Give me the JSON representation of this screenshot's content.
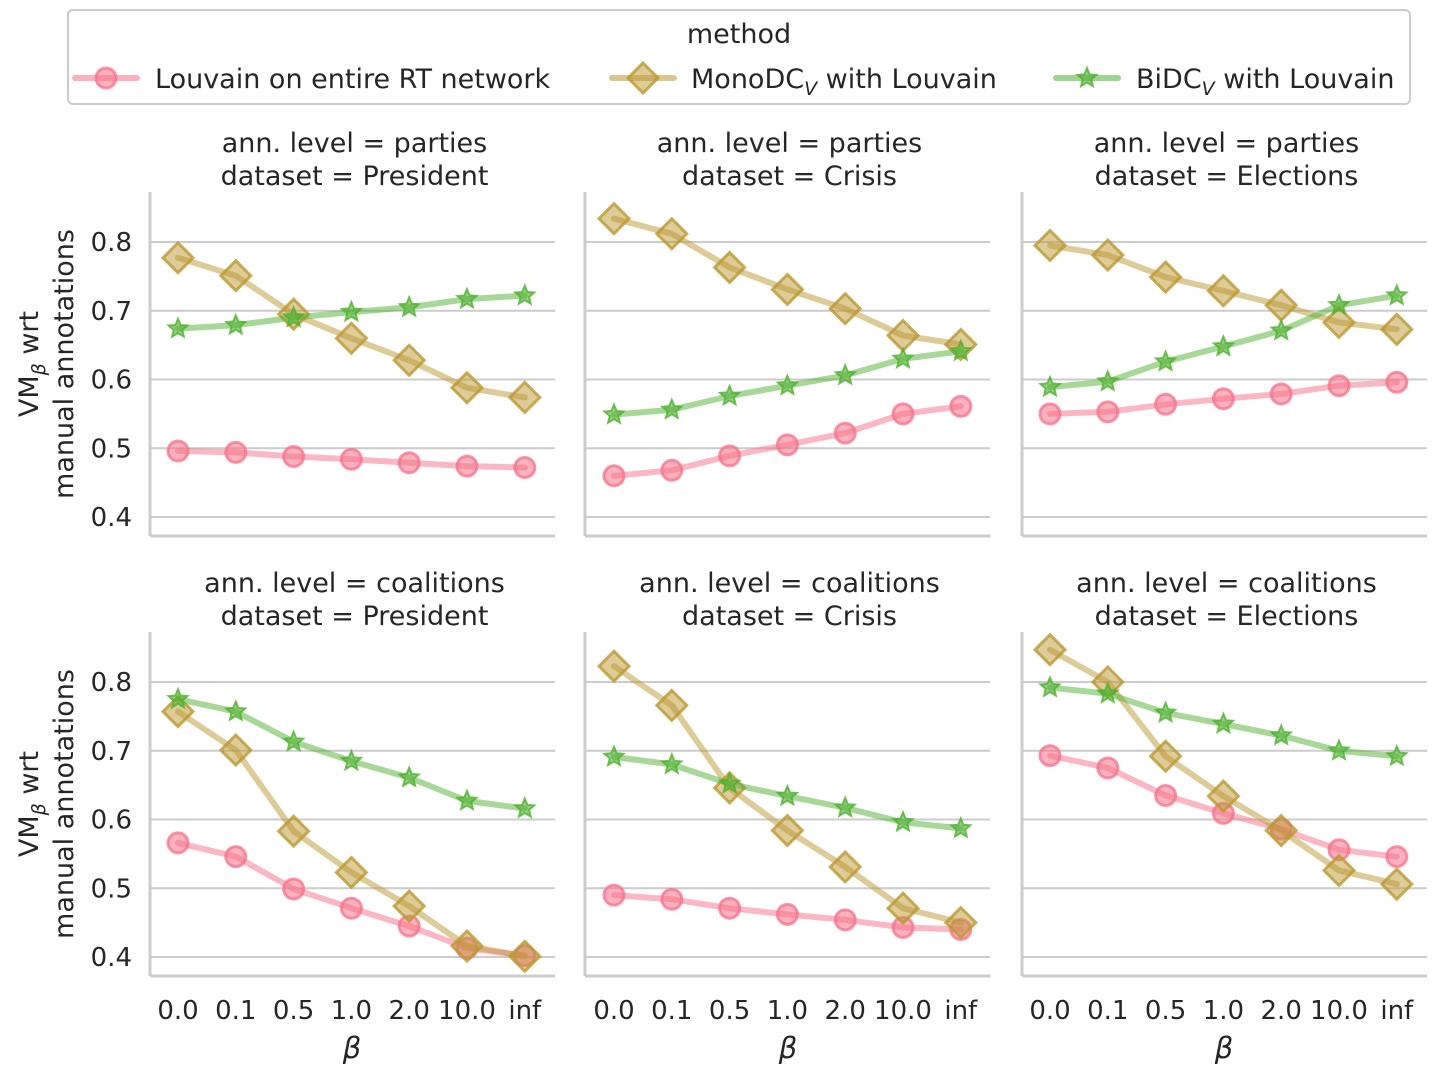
{
  "legend": {
    "title": "method",
    "entries": [
      {
        "label": "Louvain on entire RT network",
        "main": "Louvain on entire RT network",
        "sub": "",
        "tail": "",
        "series": 0
      },
      {
        "label": "MonoDC_V with Louvain",
        "main": "MonoDC",
        "sub": "V",
        "tail": " with Louvain",
        "series": 1
      },
      {
        "label": "BiDC_V with Louvain",
        "main": "BiDC",
        "sub": "V",
        "tail": " with Louvain",
        "series": 2
      }
    ]
  },
  "colors": {
    "louvain": "#f77189",
    "mono": "#bb9832",
    "bidc": "#50b131",
    "grid": "#cccccc",
    "text": "#262626"
  },
  "y_axis_label": {
    "main": "VM",
    "sub": "β",
    "tail": " wrt",
    "line2": "manual annotations"
  },
  "x_axis_label": "β",
  "chart_data": [
    {
      "type": "line",
      "title_line1": "ann. level = parties",
      "title_line2": "dataset = President",
      "categories": [
        "0.0",
        "0.1",
        "0.5",
        "1.0",
        "2.0",
        "10.0",
        "inf"
      ],
      "yticks": [
        "0.4",
        "0.5",
        "0.6",
        "0.7",
        "0.8"
      ],
      "ylim": [
        0.37,
        0.87
      ],
      "series": [
        {
          "name": "Louvain on entire RT network",
          "values": [
            0.496,
            0.494,
            0.488,
            0.484,
            0.479,
            0.474,
            0.472
          ]
        },
        {
          "name": "MonoDC_V with Louvain",
          "values": [
            0.777,
            0.751,
            0.695,
            0.66,
            0.628,
            0.588,
            0.574
          ]
        },
        {
          "name": "BiDC_V with Louvain",
          "values": [
            0.674,
            0.679,
            0.69,
            0.698,
            0.705,
            0.717,
            0.722
          ]
        }
      ]
    },
    {
      "type": "line",
      "title_line1": "ann. level = parties",
      "title_line2": "dataset = Crisis",
      "categories": [
        "0.0",
        "0.1",
        "0.5",
        "1.0",
        "2.0",
        "10.0",
        "inf"
      ],
      "yticks": [
        "0.4",
        "0.5",
        "0.6",
        "0.7",
        "0.8"
      ],
      "ylim": [
        0.37,
        0.87
      ],
      "series": [
        {
          "name": "Louvain on entire RT network",
          "values": [
            0.46,
            0.468,
            0.489,
            0.505,
            0.522,
            0.55,
            0.561
          ]
        },
        {
          "name": "MonoDC_V with Louvain",
          "values": [
            0.834,
            0.812,
            0.763,
            0.731,
            0.703,
            0.664,
            0.651
          ]
        },
        {
          "name": "BiDC_V with Louvain",
          "values": [
            0.549,
            0.556,
            0.576,
            0.591,
            0.606,
            0.63,
            0.641
          ]
        }
      ]
    },
    {
      "type": "line",
      "title_line1": "ann. level = parties",
      "title_line2": "dataset = Elections",
      "categories": [
        "0.0",
        "0.1",
        "0.5",
        "1.0",
        "2.0",
        "10.0",
        "inf"
      ],
      "yticks": [
        "0.4",
        "0.5",
        "0.6",
        "0.7",
        "0.8"
      ],
      "ylim": [
        0.37,
        0.87
      ],
      "series": [
        {
          "name": "Louvain on entire RT network",
          "values": [
            0.55,
            0.553,
            0.564,
            0.572,
            0.579,
            0.591,
            0.596
          ]
        },
        {
          "name": "MonoDC_V with Louvain",
          "values": [
            0.795,
            0.781,
            0.749,
            0.729,
            0.708,
            0.683,
            0.673
          ]
        },
        {
          "name": "BiDC_V with Louvain",
          "values": [
            0.589,
            0.597,
            0.626,
            0.648,
            0.671,
            0.708,
            0.722
          ]
        }
      ]
    },
    {
      "type": "line",
      "title_line1": "ann. level = coalitions",
      "title_line2": "dataset = President",
      "categories": [
        "0.0",
        "0.1",
        "0.5",
        "1.0",
        "2.0",
        "10.0",
        "inf"
      ],
      "yticks": [
        "0.4",
        "0.5",
        "0.6",
        "0.7",
        "0.8"
      ],
      "ylim": [
        0.37,
        0.87
      ],
      "series": [
        {
          "name": "Louvain on entire RT network",
          "values": [
            0.566,
            0.546,
            0.499,
            0.471,
            0.445,
            0.413,
            0.402
          ]
        },
        {
          "name": "MonoDC_V with Louvain",
          "values": [
            0.757,
            0.701,
            0.583,
            0.523,
            0.474,
            0.416,
            0.401
          ]
        },
        {
          "name": "BiDC_V with Louvain",
          "values": [
            0.775,
            0.757,
            0.713,
            0.685,
            0.661,
            0.627,
            0.616
          ]
        }
      ]
    },
    {
      "type": "line",
      "title_line1": "ann. level = coalitions",
      "title_line2": "dataset = Crisis",
      "categories": [
        "0.0",
        "0.1",
        "0.5",
        "1.0",
        "2.0",
        "10.0",
        "inf"
      ],
      "yticks": [
        "0.4",
        "0.5",
        "0.6",
        "0.7",
        "0.8"
      ],
      "ylim": [
        0.37,
        0.87
      ],
      "series": [
        {
          "name": "Louvain on entire RT network",
          "values": [
            0.49,
            0.484,
            0.471,
            0.462,
            0.454,
            0.443,
            0.44
          ]
        },
        {
          "name": "MonoDC_V with Louvain",
          "values": [
            0.823,
            0.766,
            0.646,
            0.584,
            0.531,
            0.471,
            0.45
          ]
        },
        {
          "name": "BiDC_V with Louvain",
          "values": [
            0.691,
            0.68,
            0.652,
            0.634,
            0.617,
            0.596,
            0.587
          ]
        }
      ]
    },
    {
      "type": "line",
      "title_line1": "ann. level = coalitions",
      "title_line2": "dataset = Elections",
      "categories": [
        "0.0",
        "0.1",
        "0.5",
        "1.0",
        "2.0",
        "10.0",
        "inf"
      ],
      "yticks": [
        "0.4",
        "0.5",
        "0.6",
        "0.7",
        "0.8"
      ],
      "ylim": [
        0.37,
        0.87
      ],
      "series": [
        {
          "name": "Louvain on entire RT network",
          "values": [
            0.693,
            0.675,
            0.635,
            0.609,
            0.586,
            0.556,
            0.546
          ]
        },
        {
          "name": "MonoDC_V with Louvain",
          "values": [
            0.847,
            0.8,
            0.692,
            0.634,
            0.584,
            0.526,
            0.506
          ]
        },
        {
          "name": "BiDC_V with Louvain",
          "values": [
            0.792,
            0.783,
            0.755,
            0.739,
            0.722,
            0.7,
            0.692
          ]
        }
      ]
    }
  ]
}
